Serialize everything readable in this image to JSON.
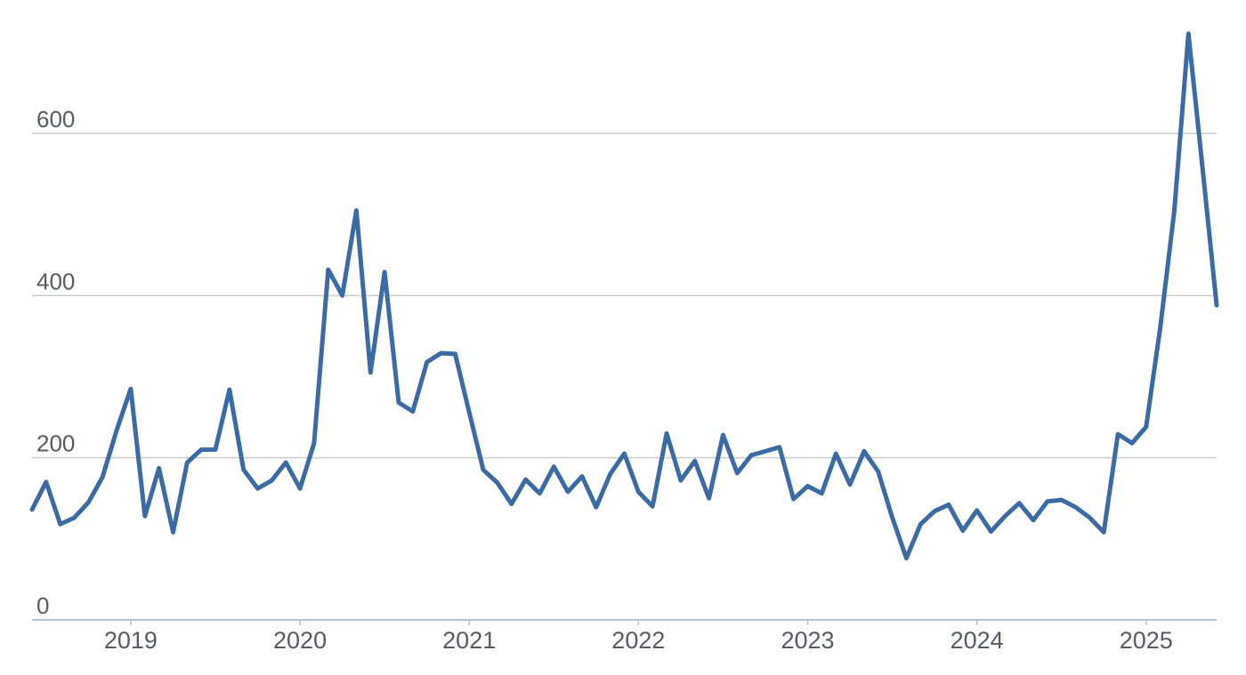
{
  "chart_data": {
    "type": "line",
    "title": "",
    "xlabel": "",
    "ylabel": "",
    "x_frequency": "monthly",
    "x_range": [
      "2018-06",
      "2025-06"
    ],
    "x": [
      "2018-06",
      "2018-07",
      "2018-08",
      "2018-09",
      "2018-10",
      "2018-11",
      "2018-12",
      "2019-01",
      "2019-02",
      "2019-03",
      "2019-04",
      "2019-05",
      "2019-06",
      "2019-07",
      "2019-08",
      "2019-09",
      "2019-10",
      "2019-11",
      "2019-12",
      "2020-01",
      "2020-02",
      "2020-03",
      "2020-04",
      "2020-05",
      "2020-06",
      "2020-07",
      "2020-08",
      "2020-09",
      "2020-10",
      "2020-11",
      "2020-12",
      "2021-01",
      "2021-02",
      "2021-03",
      "2021-04",
      "2021-05",
      "2021-06",
      "2021-07",
      "2021-08",
      "2021-09",
      "2021-10",
      "2021-11",
      "2021-12",
      "2022-01",
      "2022-02",
      "2022-03",
      "2022-04",
      "2022-05",
      "2022-06",
      "2022-07",
      "2022-08",
      "2022-09",
      "2022-10",
      "2022-11",
      "2022-12",
      "2023-01",
      "2023-02",
      "2023-03",
      "2023-04",
      "2023-05",
      "2023-06",
      "2023-07",
      "2023-08",
      "2023-09",
      "2023-10",
      "2023-11",
      "2023-12",
      "2024-01",
      "2024-02",
      "2024-03",
      "2024-04",
      "2024-05",
      "2024-06",
      "2024-07",
      "2024-08",
      "2024-09",
      "2024-10",
      "2024-11",
      "2024-12",
      "2025-01",
      "2025-02",
      "2025-03",
      "2025-04",
      "2025-05",
      "2025-06"
    ],
    "values": [
      136,
      170,
      118,
      126,
      145,
      176,
      234,
      285,
      128,
      187,
      108,
      194,
      210,
      210,
      284,
      185,
      162,
      172,
      194,
      162,
      218,
      432,
      400,
      505,
      305,
      429,
      268,
      257,
      318,
      329,
      328,
      256,
      185,
      169,
      143,
      173,
      156,
      189,
      158,
      177,
      139,
      180,
      205,
      158,
      140,
      230,
      172,
      196,
      150,
      228,
      181,
      203,
      208,
      213,
      149,
      165,
      156,
      205,
      167,
      208,
      183,
      126,
      76,
      118,
      134,
      142,
      110,
      135,
      109,
      128,
      144,
      123,
      146,
      148,
      139,
      126,
      108,
      229,
      218,
      238,
      360,
      505,
      723,
      557,
      388
    ],
    "ylim": [
      0,
      740
    ],
    "yticks": [
      0,
      200,
      400,
      600
    ],
    "ytick_labels": [
      "0",
      "200",
      "400",
      "600"
    ],
    "xticks": [
      {
        "label": "2019",
        "month_index": 7
      },
      {
        "label": "2020",
        "month_index": 19
      },
      {
        "label": "2021",
        "month_index": 31
      },
      {
        "label": "2022",
        "month_index": 43
      },
      {
        "label": "2023",
        "month_index": 55
      },
      {
        "label": "2024",
        "month_index": 67
      },
      {
        "label": "2025",
        "month_index": 79
      }
    ],
    "grid": "horizontal",
    "legend": "none",
    "colors": {
      "line": "#3b6ba5",
      "gridline": "#cccccc",
      "axis_line": "#b4c3d3",
      "tick": "#b4c3d3",
      "label": "#565c63",
      "background": "#ffffff"
    }
  }
}
